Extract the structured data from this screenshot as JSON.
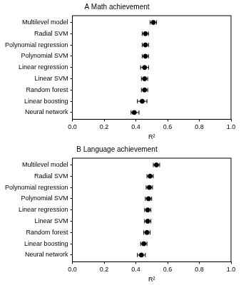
{
  "chart_data": [
    {
      "type": "dot",
      "title": "A Math achievement",
      "x_label": "R²",
      "categories": [
        "Multilevel model",
        "Radial SVM",
        "Polynomial regression",
        "Polynomial SVM",
        "Linear regression",
        "Linear SVM",
        "Random forest",
        "Linear boosting",
        "Neural network"
      ],
      "values": [
        0.51,
        0.46,
        0.46,
        0.46,
        0.455,
        0.455,
        0.455,
        0.44,
        0.39
      ],
      "ci_low": [
        0.49,
        0.44,
        0.44,
        0.44,
        0.43,
        0.435,
        0.435,
        0.41,
        0.37
      ],
      "ci_high": [
        0.53,
        0.48,
        0.48,
        0.48,
        0.48,
        0.475,
        0.475,
        0.47,
        0.42
      ],
      "color": "#000000",
      "grid": false,
      "xlim": [
        0,
        1
      ],
      "xticks": [
        {
          "value": 0,
          "label": "0.0"
        },
        0.2,
        0.4,
        0.6,
        0.8,
        {
          "value": 1,
          "label": "1.0"
        }
      ]
    },
    {
      "type": "dot",
      "title": "B Language achievement",
      "x_label": "R²",
      "categories": [
        "Multilevel model",
        "Radial SVM",
        "Polynomial regression",
        "Polynomial SVM",
        "Linear regression",
        "Linear SVM",
        "Random forest",
        "Linear boosting",
        "Neural network"
      ],
      "values": [
        0.53,
        0.49,
        0.485,
        0.48,
        0.475,
        0.475,
        0.47,
        0.45,
        0.435
      ],
      "ci_low": [
        0.51,
        0.47,
        0.465,
        0.46,
        0.455,
        0.455,
        0.45,
        0.43,
        0.41
      ],
      "ci_high": [
        0.55,
        0.51,
        0.505,
        0.5,
        0.495,
        0.495,
        0.49,
        0.47,
        0.46
      ],
      "color": "#000000",
      "grid": false,
      "xlim": [
        0,
        1
      ],
      "xticks": [
        {
          "value": 0,
          "label": "0.0"
        },
        0.2,
        0.4,
        0.6,
        0.8,
        {
          "value": 1,
          "label": "1.0"
        }
      ]
    }
  ]
}
